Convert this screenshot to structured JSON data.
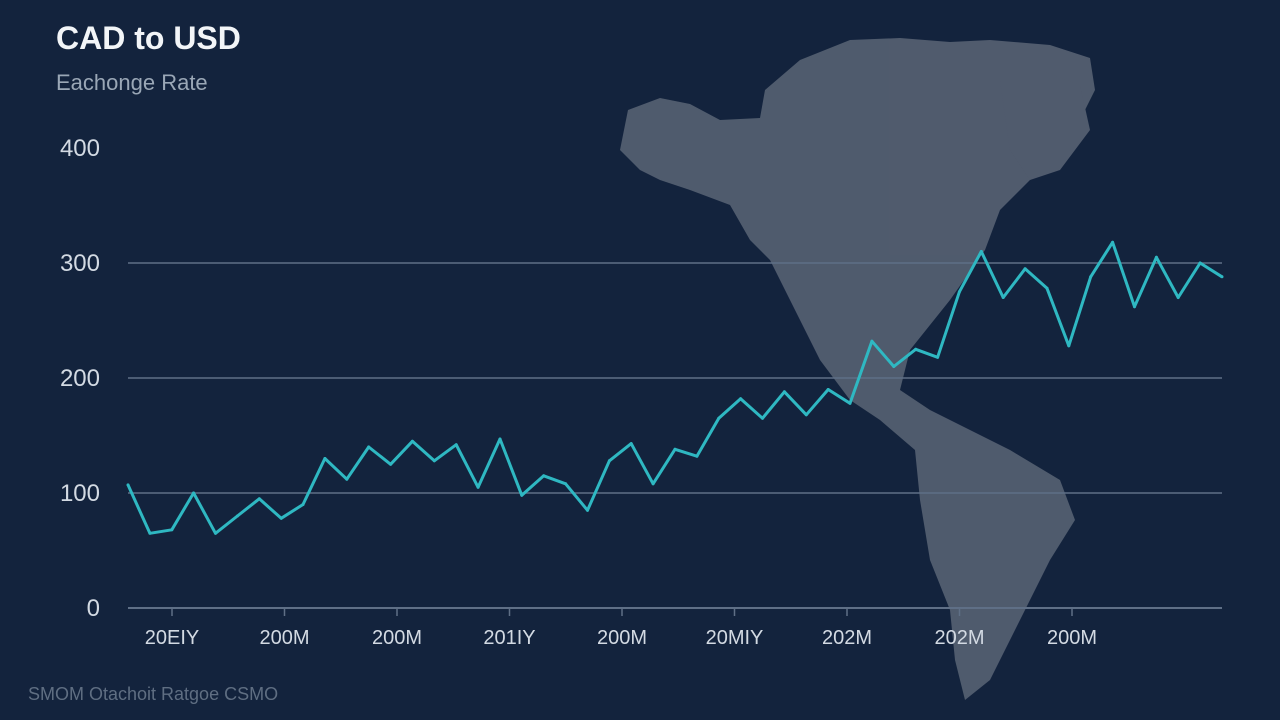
{
  "chart_data": {
    "type": "line",
    "title": "CAD to USD",
    "subtitle": "Eachonge Rate",
    "footer": "SMOM Otachoit Ratgoe CSMO",
    "ylim": [
      0,
      400
    ],
    "yticks": [
      0,
      100,
      200,
      300,
      400
    ],
    "ytick_labels": [
      "0",
      "100",
      "200",
      "300",
      "400"
    ],
    "xtick_labels": [
      "20EIY",
      "200M",
      "200M",
      "201IY",
      "200M",
      "20MIY",
      "202M",
      "202M",
      "200M"
    ],
    "grid": true,
    "line_color": "#2fb8c2",
    "background_color": "#13233d",
    "gridline_color": "#5f6f86",
    "map_color": "#5b6576",
    "series": [
      {
        "x": [
          0,
          2,
          4,
          6,
          8,
          10,
          12,
          14,
          16,
          18,
          20,
          22,
          24,
          26,
          28,
          30,
          32,
          34,
          36,
          38,
          40,
          42,
          44,
          46,
          48,
          50,
          52,
          54,
          56,
          58,
          60,
          62,
          64,
          66,
          68,
          70,
          72,
          74,
          76,
          78,
          80,
          82,
          84,
          86,
          88,
          90,
          92,
          94,
          96,
          98,
          100
        ],
        "values": [
          107,
          65,
          68,
          100,
          65,
          80,
          95,
          78,
          90,
          130,
          112,
          140,
          125,
          145,
          128,
          142,
          105,
          147,
          98,
          115,
          108,
          85,
          128,
          143,
          108,
          138,
          132,
          165,
          182,
          165,
          188,
          168,
          190,
          178,
          232,
          210,
          225,
          218,
          275,
          310,
          270,
          295,
          278,
          228,
          288,
          318,
          262,
          305,
          270,
          300,
          288
        ]
      }
    ]
  }
}
